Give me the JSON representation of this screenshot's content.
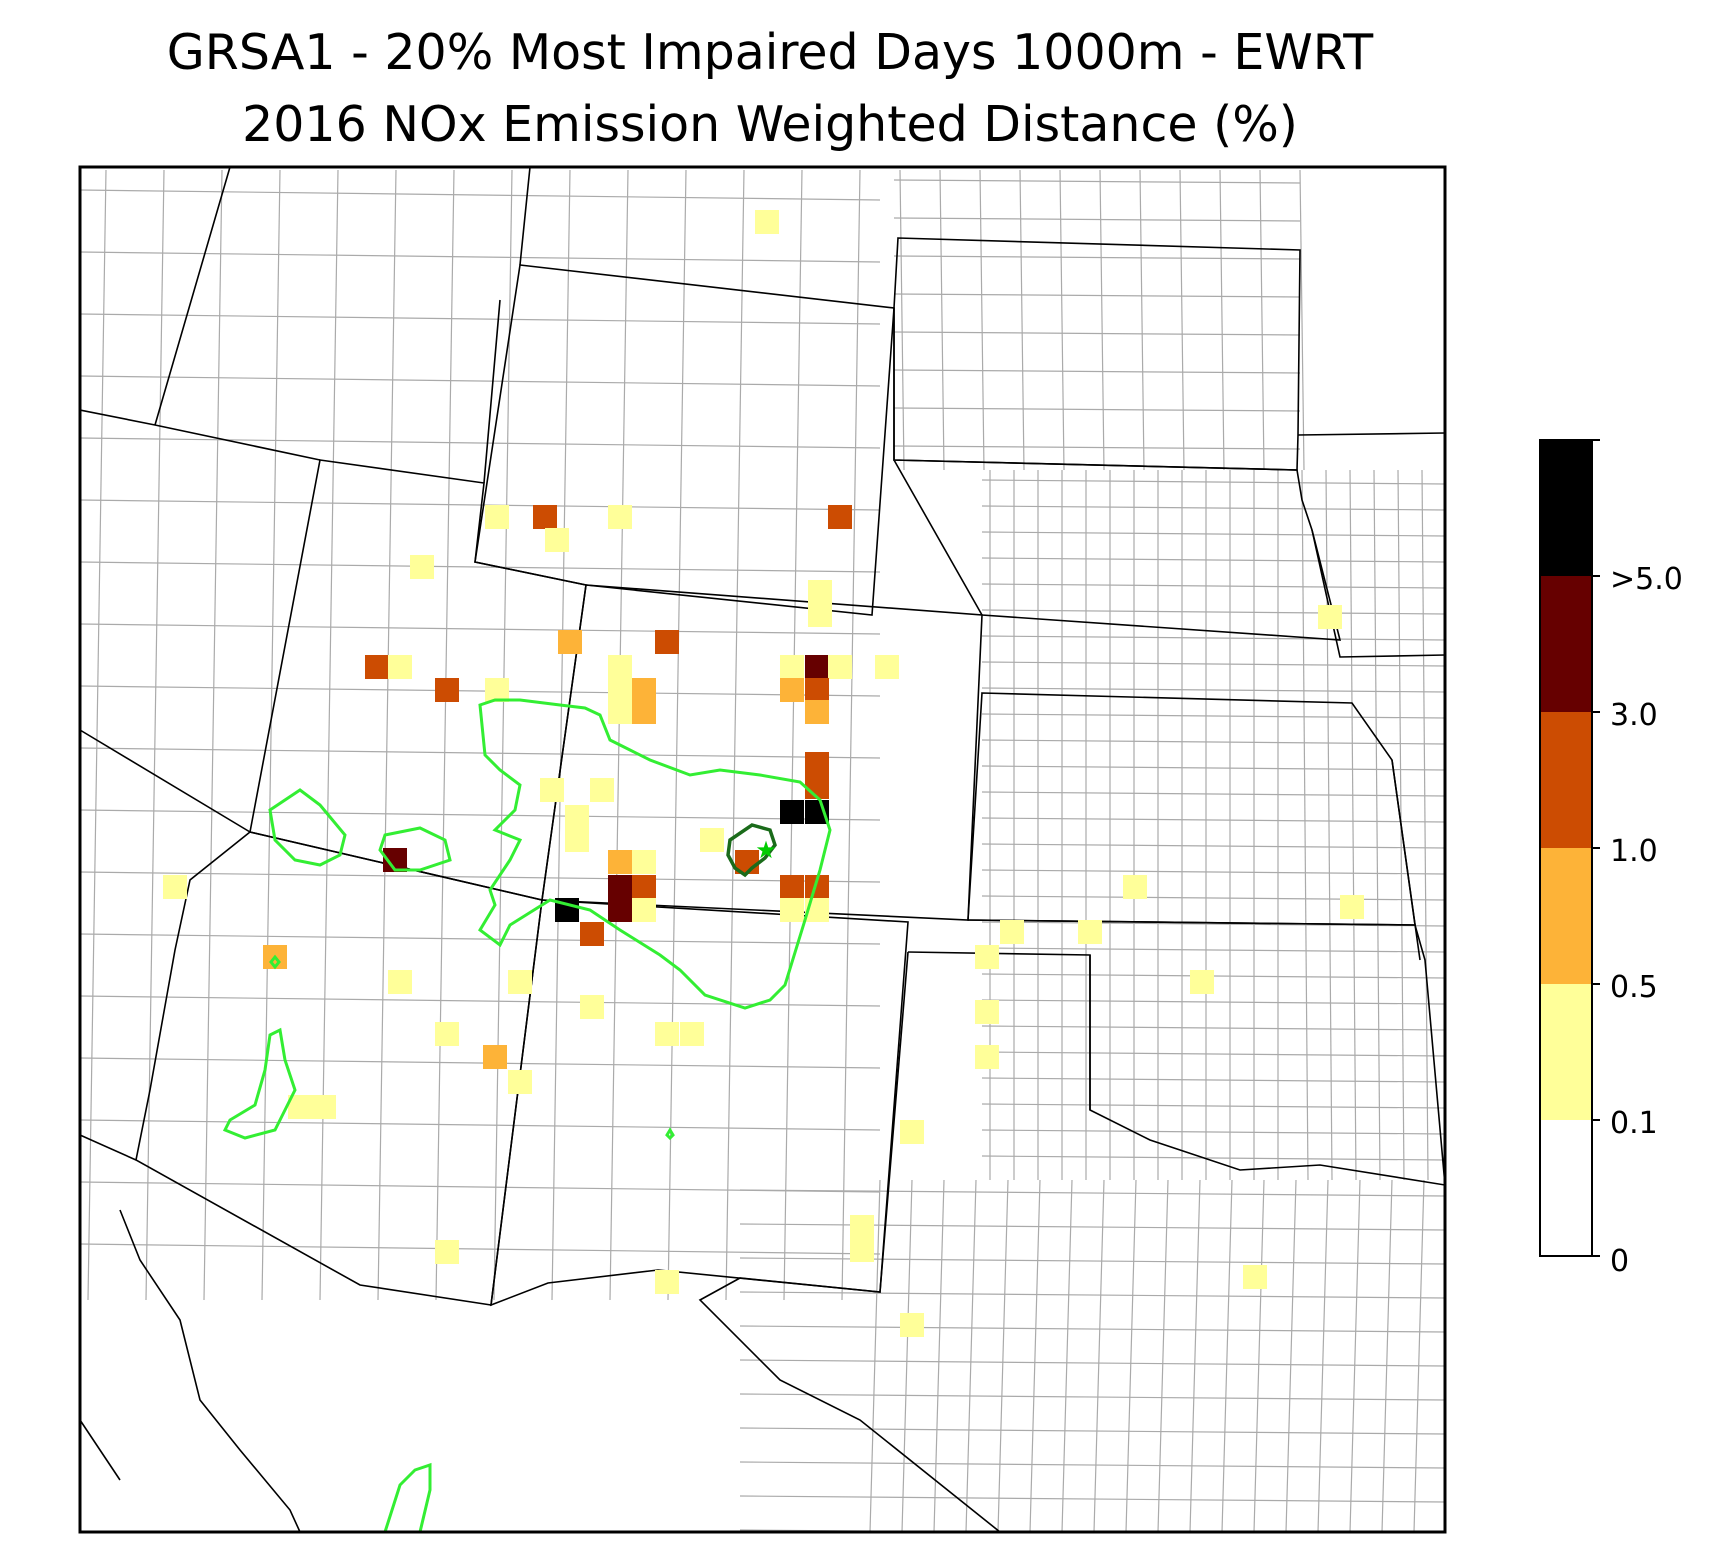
{
  "title": {
    "line1": "GRSA1 - 20% Most Impaired Days 1000m - EWRT",
    "line2": "2016 NOx Emission Weighted Distance (%)"
  },
  "colorbar": {
    "bins": [
      {
        "min": 0,
        "max": 0.1,
        "color": "#ffffff"
      },
      {
        "min": 0.1,
        "max": 0.5,
        "color": "#ffff99"
      },
      {
        "min": 0.5,
        "max": 1.0,
        "color": "#fdb338"
      },
      {
        "min": 1.0,
        "max": 3.0,
        "color": "#cc4c02"
      },
      {
        "min": 3.0,
        "max": 5.0,
        "color": "#660000"
      },
      {
        "min": 5.0,
        "max": null,
        "color": "#000000"
      }
    ],
    "tick_labels": [
      "0",
      "0.1",
      "0.5",
      "1.0",
      "3.0",
      ">5.0"
    ]
  },
  "map": {
    "site_marker": "star",
    "site_color": "#00cc00",
    "contour_color": "#33ee33",
    "site_contour_color": "#1a6b1a",
    "state_border_color": "#000000",
    "county_line_color": "#aaaaaa"
  }
}
